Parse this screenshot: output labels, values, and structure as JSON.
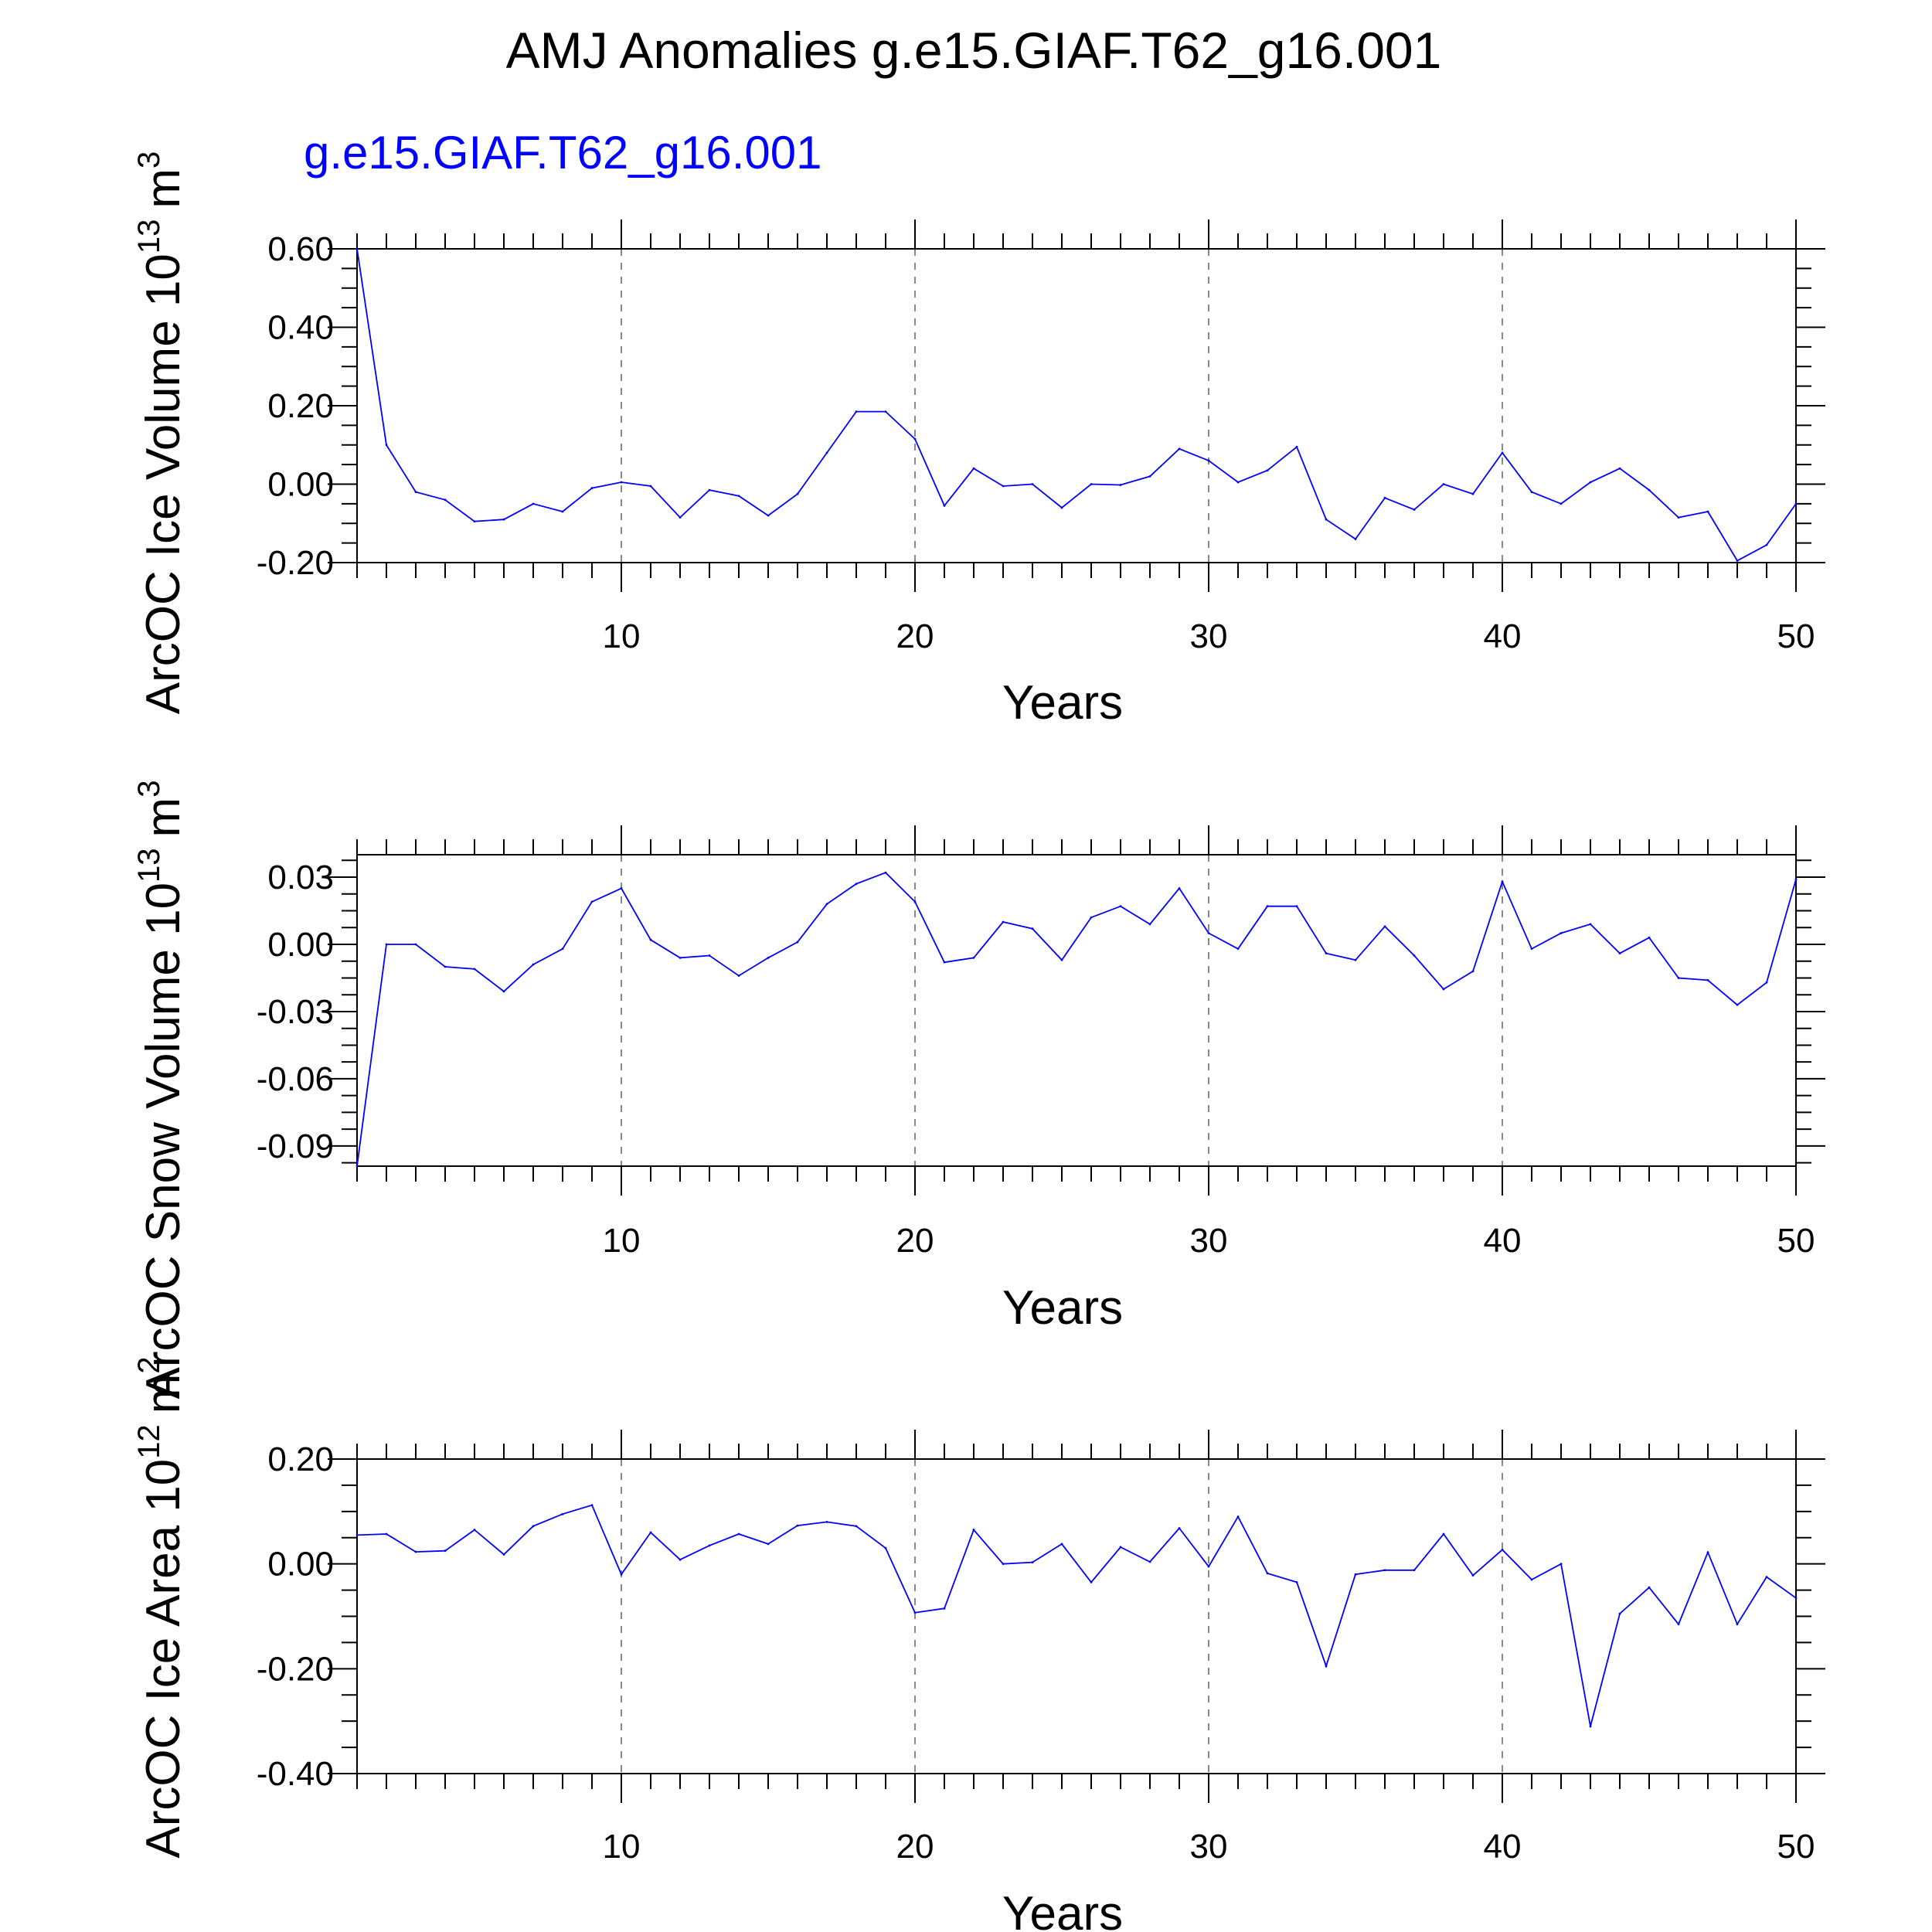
{
  "title": "AMJ Anomalies g.e15.GIAF.T62_g16.001",
  "colors": {
    "series": "#0000ff",
    "axes": "#000000",
    "grid": "#888888",
    "background": "#ffffff"
  },
  "chart_data": [
    {
      "type": "line",
      "annotation": "g.e15.GIAF.T62_g16.001",
      "xlabel": "Years",
      "ylabel": "ArcOC Ice Volume 10",
      "ylabel_exp": "13",
      "ylabel_unit": "m",
      "ylabel_unit_exp": "3",
      "xlim": [
        1,
        50
      ],
      "ylim": [
        -0.2,
        0.6
      ],
      "x_ticks": [
        "10",
        "20",
        "30",
        "40",
        "50"
      ],
      "y_ticks": [
        "0.60",
        "0.40",
        "0.20",
        "0.00",
        "-0.20"
      ],
      "grid": "vertical dashed at major x ticks",
      "series": [
        {
          "x": [
            1,
            2,
            3,
            4,
            5,
            6,
            7,
            8,
            9,
            10,
            11,
            12,
            13,
            14,
            15,
            16,
            17,
            18,
            19,
            20,
            21,
            22,
            23,
            24,
            25,
            26,
            27,
            28,
            29,
            30,
            31,
            32,
            33,
            34,
            35,
            36,
            37,
            38,
            39,
            40,
            41,
            42,
            43,
            44,
            45,
            46,
            47,
            48,
            49,
            50
          ],
          "values": [
            0.6,
            0.1,
            -0.02,
            -0.04,
            -0.095,
            -0.09,
            -0.05,
            -0.07,
            -0.01,
            0.005,
            -0.005,
            -0.085,
            -0.015,
            -0.03,
            -0.08,
            -0.025,
            0.08,
            0.185,
            0.185,
            0.115,
            -0.055,
            0.04,
            -0.005,
            0.0,
            -0.06,
            0.0,
            -0.002,
            0.02,
            0.09,
            0.06,
            0.005,
            0.035,
            0.095,
            -0.09,
            -0.14,
            -0.035,
            -0.065,
            0.0,
            -0.025,
            0.08,
            -0.02,
            -0.05,
            0.005,
            0.04,
            -0.015,
            -0.085,
            -0.07,
            -0.195,
            -0.155,
            -0.05
          ]
        }
      ]
    },
    {
      "type": "line",
      "xlabel": "Years",
      "ylabel": "ArcOC Snow Volume 10",
      "ylabel_exp": "13",
      "ylabel_unit": "m",
      "ylabel_unit_exp": "3",
      "xlim": [
        1,
        50
      ],
      "ylim": [
        -0.099,
        0.04
      ],
      "x_ticks": [
        "10",
        "20",
        "30",
        "40",
        "50"
      ],
      "y_ticks": [
        "0.03",
        "0.00",
        "-0.03",
        "-0.06",
        "-0.09"
      ],
      "grid": "vertical dashed at major x ticks",
      "series": [
        {
          "x": [
            1,
            2,
            3,
            4,
            5,
            6,
            7,
            8,
            9,
            10,
            11,
            12,
            13,
            14,
            15,
            16,
            17,
            18,
            19,
            20,
            21,
            22,
            23,
            24,
            25,
            26,
            27,
            28,
            29,
            30,
            31,
            32,
            33,
            34,
            35,
            36,
            37,
            38,
            39,
            40,
            41,
            42,
            43,
            44,
            45,
            46,
            47,
            48,
            49,
            50
          ],
          "values": [
            -0.099,
            0.0,
            0.0,
            -0.01,
            -0.011,
            -0.021,
            -0.009,
            -0.002,
            0.019,
            0.025,
            0.002,
            -0.006,
            -0.005,
            -0.014,
            -0.006,
            0.001,
            0.018,
            0.027,
            0.032,
            0.019,
            -0.008,
            -0.006,
            0.01,
            0.007,
            -0.007,
            0.012,
            0.017,
            0.009,
            0.025,
            0.005,
            -0.002,
            0.017,
            0.017,
            -0.004,
            -0.007,
            0.008,
            -0.005,
            -0.02,
            -0.012,
            0.028,
            -0.002,
            0.005,
            0.009,
            -0.004,
            0.003,
            -0.015,
            -0.016,
            -0.027,
            -0.017,
            0.029
          ]
        }
      ]
    },
    {
      "type": "line",
      "xlabel": "Years",
      "ylabel": "ArcOC Ice Area 10",
      "ylabel_exp": "12",
      "ylabel_unit": "m",
      "ylabel_unit_exp": "2",
      "xlim": [
        1,
        50
      ],
      "ylim": [
        -0.4,
        0.2
      ],
      "x_ticks": [
        "10",
        "20",
        "30",
        "40",
        "50"
      ],
      "y_ticks": [
        "0.20",
        "0.00",
        "-0.20",
        "-0.40"
      ],
      "grid": "vertical dashed at major x ticks",
      "series": [
        {
          "x": [
            1,
            2,
            3,
            4,
            5,
            6,
            7,
            8,
            9,
            10,
            11,
            12,
            13,
            14,
            15,
            16,
            17,
            18,
            19,
            20,
            21,
            22,
            23,
            24,
            25,
            26,
            27,
            28,
            29,
            30,
            31,
            32,
            33,
            34,
            35,
            36,
            37,
            38,
            39,
            40,
            41,
            42,
            43,
            44,
            45,
            46,
            47,
            48,
            49,
            50
          ],
          "values": [
            0.055,
            0.057,
            0.023,
            0.025,
            0.065,
            0.018,
            0.072,
            0.095,
            0.112,
            -0.02,
            0.06,
            0.008,
            0.035,
            0.057,
            0.038,
            0.073,
            0.08,
            0.072,
            0.03,
            -0.093,
            -0.085,
            0.065,
            0.0,
            0.003,
            0.038,
            -0.035,
            0.032,
            0.004,
            0.068,
            -0.005,
            0.09,
            -0.018,
            -0.035,
            -0.195,
            -0.02,
            -0.012,
            -0.012,
            0.057,
            -0.022,
            0.027,
            -0.03,
            0.0,
            -0.31,
            -0.095,
            -0.045,
            -0.115,
            0.022,
            -0.115,
            -0.025,
            -0.065
          ]
        }
      ]
    }
  ]
}
